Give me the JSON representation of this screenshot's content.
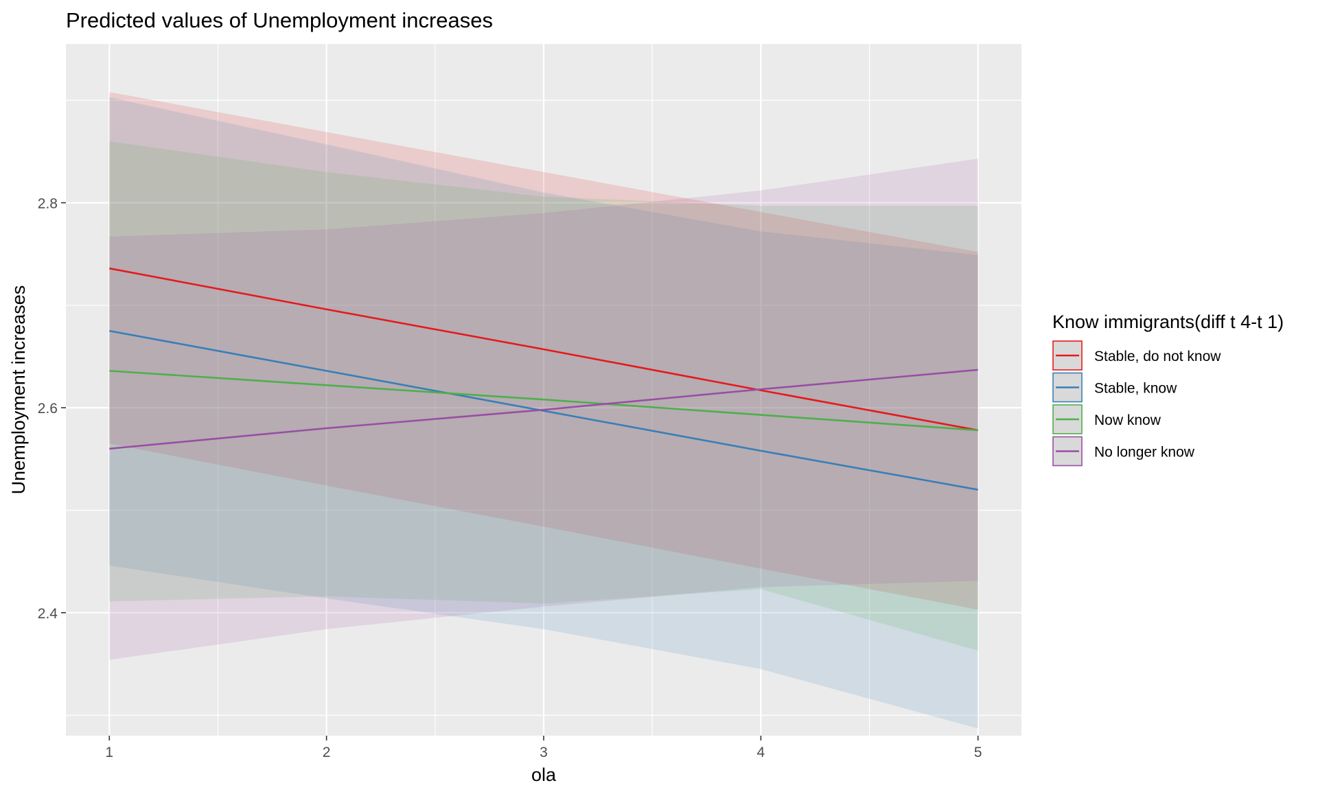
{
  "chart_data": {
    "type": "line",
    "title": "Predicted values of Unemployment increases",
    "xlabel": "ola",
    "ylabel": "Unemployment increases",
    "x": [
      1,
      2,
      3,
      4,
      5
    ],
    "xticks": [
      "1",
      "2",
      "3",
      "4",
      "5"
    ],
    "yticks": [
      "2.4",
      "2.6",
      "2.8"
    ],
    "xlim": [
      0.8,
      5.2
    ],
    "ylim": [
      2.28,
      2.955
    ],
    "grid": true,
    "legend": {
      "title": "Know immigrants(diff t 4-t 1)",
      "position": "right"
    },
    "series": [
      {
        "name": "Stable, do not know",
        "color": "#E41A1C",
        "values": [
          2.736,
          2.696,
          2.657,
          2.617,
          2.578
        ],
        "lower": [
          2.565,
          2.524,
          2.484,
          2.443,
          2.403
        ],
        "upper": [
          2.908,
          2.869,
          2.83,
          2.791,
          2.752
        ]
      },
      {
        "name": "Stable, know",
        "color": "#377EB8",
        "values": [
          2.675,
          2.636,
          2.597,
          2.558,
          2.52
        ],
        "lower": [
          2.446,
          2.414,
          2.384,
          2.345,
          2.287
        ],
        "upper": [
          2.903,
          2.857,
          2.81,
          2.772,
          2.749
        ]
      },
      {
        "name": "Now know",
        "color": "#4DAF4A",
        "values": [
          2.636,
          2.622,
          2.608,
          2.593,
          2.578
        ],
        "lower": [
          2.411,
          2.416,
          2.409,
          2.423,
          2.363
        ],
        "upper": [
          2.86,
          2.83,
          2.806,
          2.797,
          2.797
        ]
      },
      {
        "name": "No longer know",
        "color": "#984EA3",
        "values": [
          2.56,
          2.58,
          2.598,
          2.618,
          2.637
        ],
        "lower": [
          2.354,
          2.384,
          2.406,
          2.425,
          2.431
        ],
        "upper": [
          2.767,
          2.774,
          2.79,
          2.812,
          2.843
        ]
      }
    ]
  }
}
